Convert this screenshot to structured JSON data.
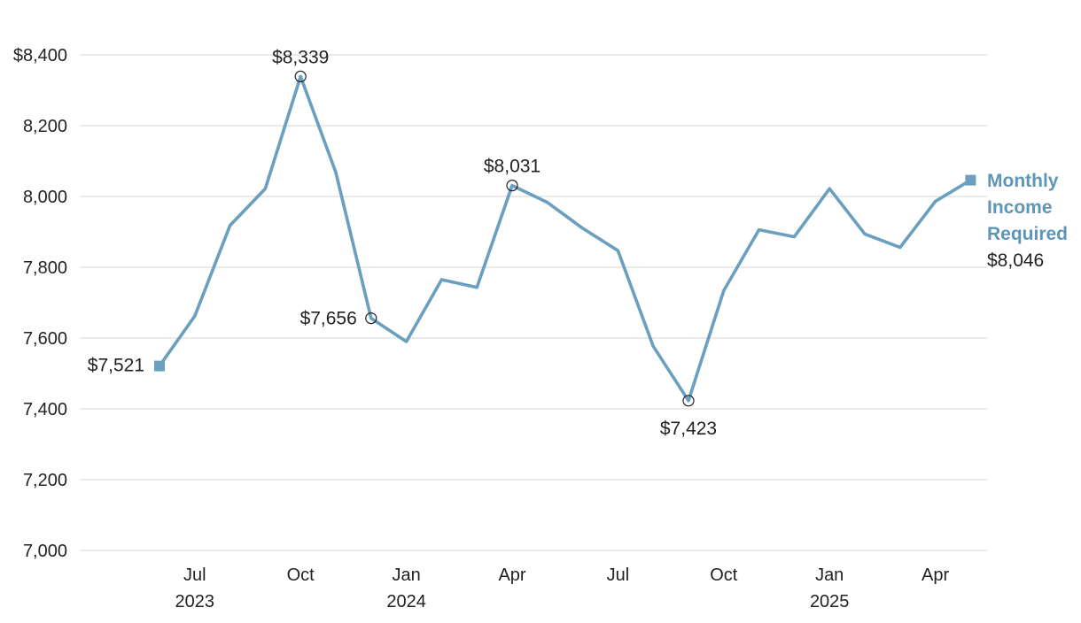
{
  "chart_data": {
    "type": "line",
    "x": [
      "2023-06",
      "2023-07",
      "2023-08",
      "2023-09",
      "2023-10",
      "2023-11",
      "2023-12",
      "2024-01",
      "2024-02",
      "2024-03",
      "2024-04",
      "2024-05",
      "2024-06",
      "2024-07",
      "2024-08",
      "2024-09",
      "2024-10",
      "2024-11",
      "2024-12",
      "2025-01",
      "2025-02",
      "2025-03",
      "2025-04",
      "2025-05"
    ],
    "series": [
      {
        "name": "Monthly Income Required",
        "color": "#6a9fbf",
        "values": [
          7521,
          7662,
          7918,
          8022,
          8339,
          8068,
          7656,
          7590,
          7765,
          7743,
          8031,
          7983,
          7910,
          7847,
          7577,
          7423,
          7734,
          7906,
          7886,
          8022,
          7894,
          7856,
          7986,
          8046
        ]
      }
    ],
    "ylim": [
      7000,
      8400
    ],
    "y_ticks": [
      {
        "value": 8400,
        "label": "$8,400"
      },
      {
        "value": 8200,
        "label": "8,200"
      },
      {
        "value": 8000,
        "label": "8,000"
      },
      {
        "value": 7800,
        "label": "7,800"
      },
      {
        "value": 7600,
        "label": "7,600"
      },
      {
        "value": 7400,
        "label": "7,400"
      },
      {
        "value": 7200,
        "label": "7,200"
      },
      {
        "value": 7000,
        "label": "7,000"
      }
    ],
    "x_ticks": [
      {
        "x": "2023-07",
        "label": "Jul",
        "year": "2023"
      },
      {
        "x": "2023-10",
        "label": "Oct",
        "year": ""
      },
      {
        "x": "2024-01",
        "label": "Jan",
        "year": "2024"
      },
      {
        "x": "2024-04",
        "label": "Apr",
        "year": ""
      },
      {
        "x": "2024-07",
        "label": "Jul",
        "year": ""
      },
      {
        "x": "2024-10",
        "label": "Oct",
        "year": ""
      },
      {
        "x": "2025-01",
        "label": "Jan",
        "year": "2025"
      },
      {
        "x": "2025-04",
        "label": "Apr",
        "year": ""
      }
    ],
    "annotations": [
      {
        "x": "2023-06",
        "label": "$7,521",
        "marker": "square"
      },
      {
        "x": "2023-10",
        "label": "$8,339",
        "marker": "circle"
      },
      {
        "x": "2023-12",
        "label": "$7,656",
        "marker": "circle"
      },
      {
        "x": "2024-04",
        "label": "$8,031",
        "marker": "circle"
      },
      {
        "x": "2024-09",
        "label": "$7,423",
        "marker": "circle"
      },
      {
        "x": "2025-05",
        "label": "$8,046",
        "marker": "square"
      }
    ],
    "series_label_lines": [
      "Monthly",
      "Income",
      "Required"
    ],
    "grid": true,
    "legend": "end-of-line label"
  }
}
